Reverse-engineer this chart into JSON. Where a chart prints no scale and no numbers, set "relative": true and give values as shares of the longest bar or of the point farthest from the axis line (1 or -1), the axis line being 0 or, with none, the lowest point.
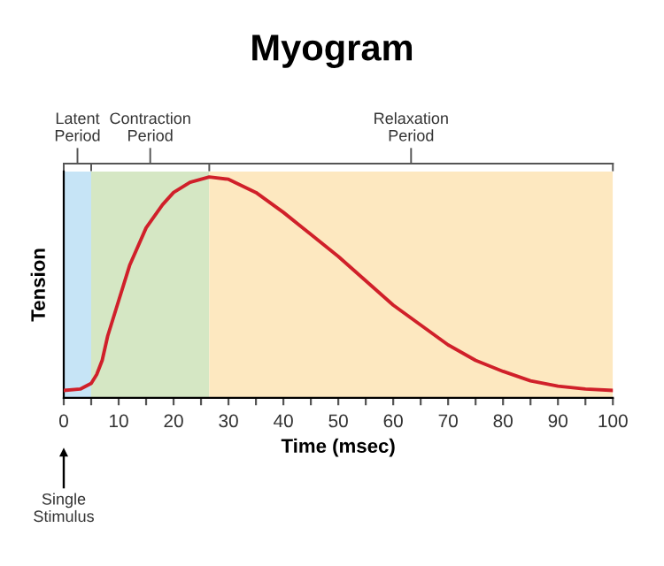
{
  "chart_data": {
    "type": "line",
    "title": "Myogram",
    "xlabel": "Time (msec)",
    "ylabel": "Tension",
    "relative": true,
    "xlim": [
      0,
      100
    ],
    "xticks": [
      0,
      {
        "value": 5,
        "label": null
      },
      10,
      {
        "value": 15,
        "label": null
      },
      20,
      {
        "value": 25,
        "label": null
      },
      30,
      {
        "value": 35,
        "label": null
      },
      40,
      {
        "value": 45,
        "label": null
      },
      50,
      {
        "value": 55,
        "label": null
      },
      60,
      {
        "value": 65,
        "label": null
      },
      70,
      {
        "value": 75,
        "label": null
      },
      80,
      {
        "value": 85,
        "label": null
      },
      90,
      {
        "value": 95,
        "label": null
      },
      100
    ],
    "x": [
      0,
      3,
      5,
      6,
      7,
      8,
      10,
      12,
      15,
      18,
      20,
      23,
      26.5,
      30,
      35,
      40,
      45,
      50,
      55,
      60,
      65,
      70,
      75,
      80,
      85,
      90,
      95,
      100
    ],
    "series": [
      {
        "color": "#d0202a",
        "values": [
          0.034,
          0.04,
          0.066,
          0.106,
          0.17,
          0.28,
          0.44,
          0.6,
          0.77,
          0.875,
          0.93,
          0.976,
          1.0,
          0.99,
          0.93,
          0.84,
          0.74,
          0.64,
          0.53,
          0.42,
          0.33,
          0.24,
          0.17,
          0.12,
          0.077,
          0.053,
          0.04,
          0.034
        ]
      }
    ],
    "bands": [
      {
        "axis": "x",
        "from": 0,
        "to": 5,
        "label": "Latent\nPeriod",
        "color": "#c6e4f6"
      },
      {
        "axis": "x",
        "from": 5,
        "to": 26.5,
        "label": "Contraction\nPeriod",
        "color": "#d5e7c4"
      },
      {
        "axis": "x",
        "from": 26.5,
        "to": 100,
        "label": "Relaxation\nPeriod",
        "color": "#fde8c0"
      }
    ],
    "annotations": [
      "Single\nStimulus"
    ],
    "grid": false,
    "legend": false,
    "marker": "none",
    "line_style": "solid"
  }
}
